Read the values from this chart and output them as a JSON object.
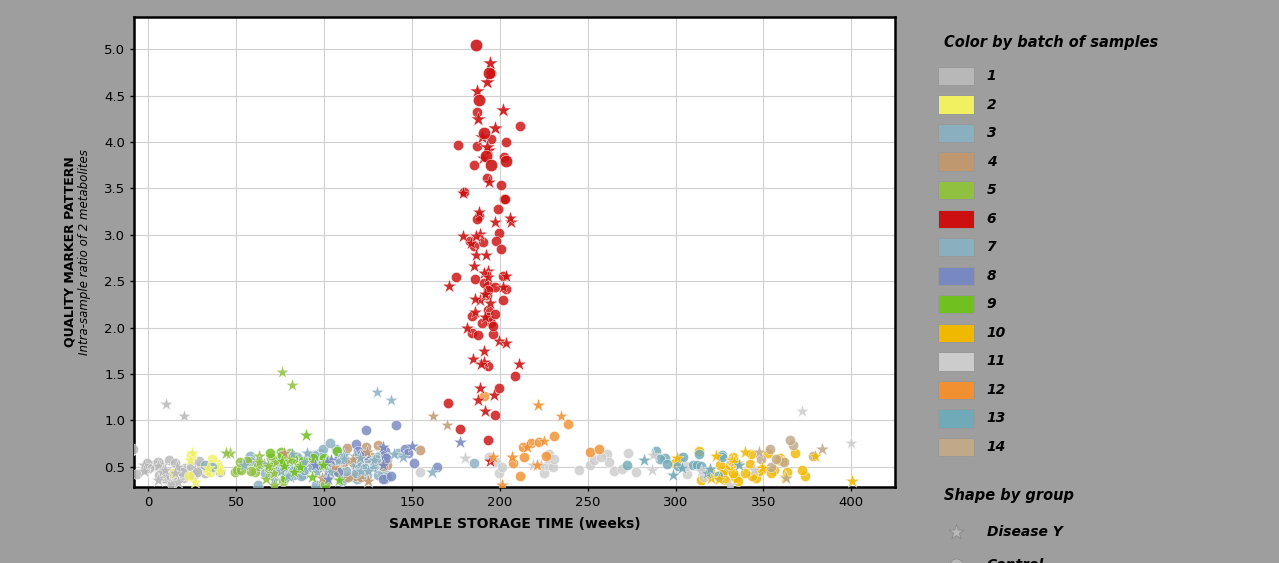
{
  "xlabel": "SAMPLE STORAGE TIME (weeks)",
  "ylabel_line1": "QUALITY MARKER PATTERN",
  "ylabel_line2": "Intra-sample ratio of 2 metabolites",
  "legend_title_color": "Color by batch of samples",
  "legend_title_shape": "Shape by group",
  "xlim": [
    -8,
    425
  ],
  "ylim": [
    0.28,
    5.35
  ],
  "yticks": [
    0.5,
    1.0,
    1.5,
    2.0,
    2.5,
    3.0,
    3.5,
    4.0,
    4.5,
    5.0
  ],
  "xticks": [
    0,
    50,
    100,
    150,
    200,
    250,
    300,
    350,
    400
  ],
  "background_color": "#9e9e9e",
  "plot_bg": "#ffffff",
  "batch_colors": {
    "1": "#b8b8b8",
    "2": "#f0f060",
    "3": "#8ab0c0",
    "4": "#c09870",
    "5": "#90c040",
    "6": "#cc1010",
    "7": "#8ab0c0",
    "8": "#7888c0",
    "9": "#70c020",
    "10": "#f0b800",
    "11": "#cccccc",
    "12": "#f09030",
    "13": "#70aab8",
    "14": "#c0a888"
  }
}
